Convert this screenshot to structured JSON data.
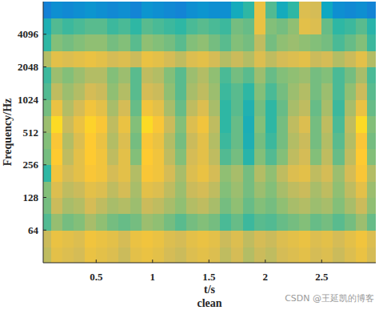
{
  "chart_data": {
    "type": "heatmap",
    "x_label": "t/s",
    "y_label": "Frequency/Hz",
    "caption": "clean",
    "watermark": "CSDN @王延凯的博客",
    "log": "y",
    "xlim": [
      0.03,
      2.98
    ],
    "ylim": [
      32,
      8192
    ],
    "xticks": [
      0.5,
      1,
      1.5,
      2,
      2.5
    ],
    "yticks": [
      64,
      128,
      256,
      512,
      1024,
      2048,
      4096
    ],
    "clim": [
      0,
      1
    ],
    "x_edges": [
      0,
      0.1,
      0.2,
      0.3,
      0.4,
      0.5,
      0.6,
      0.7,
      0.8,
      0.9,
      1,
      1.1,
      1.2,
      1.3,
      1.4,
      1.5,
      1.6,
      1.7,
      1.8,
      1.9,
      2,
      2.1,
      2.2,
      2.3,
      2.4,
      2.5,
      2.6,
      2.7,
      2.8,
      2.9,
      3
    ],
    "y_edges": [
      32,
      45,
      64,
      91,
      128,
      181,
      256,
      362,
      512,
      724,
      1024,
      1448,
      2048,
      2896,
      4096,
      5793,
      8192
    ],
    "z": [
      [
        0.72,
        0.8,
        0.78,
        0.76,
        0.82,
        0.8,
        0.78,
        0.74,
        0.8,
        0.82,
        0.8,
        0.76,
        0.74,
        0.78,
        0.8,
        0.78,
        0.72,
        0.76,
        0.7,
        0.74,
        0.72,
        0.76,
        0.78,
        0.8,
        0.76,
        0.78,
        0.74,
        0.78,
        0.82,
        0.76
      ],
      [
        0.74,
        0.82,
        0.8,
        0.78,
        0.84,
        0.82,
        0.8,
        0.76,
        0.82,
        0.84,
        0.82,
        0.78,
        0.76,
        0.8,
        0.82,
        0.8,
        0.74,
        0.78,
        0.72,
        0.76,
        0.74,
        0.78,
        0.8,
        0.82,
        0.78,
        0.8,
        0.76,
        0.8,
        0.84,
        0.78
      ],
      [
        0.55,
        0.65,
        0.6,
        0.62,
        0.68,
        0.64,
        0.6,
        0.58,
        0.6,
        0.66,
        0.64,
        0.6,
        0.56,
        0.6,
        0.62,
        0.6,
        0.54,
        0.58,
        0.52,
        0.56,
        0.55,
        0.58,
        0.6,
        0.62,
        0.58,
        0.6,
        0.56,
        0.6,
        0.66,
        0.58
      ],
      [
        0.6,
        0.74,
        0.68,
        0.7,
        0.76,
        0.72,
        0.68,
        0.7,
        0.66,
        0.74,
        0.72,
        0.68,
        0.64,
        0.7,
        0.72,
        0.68,
        0.6,
        0.64,
        0.58,
        0.62,
        0.6,
        0.64,
        0.68,
        0.7,
        0.66,
        0.68,
        0.62,
        0.68,
        0.74,
        0.64
      ],
      [
        0.62,
        0.78,
        0.72,
        0.74,
        0.8,
        0.78,
        0.72,
        0.76,
        0.68,
        0.8,
        0.78,
        0.72,
        0.66,
        0.74,
        0.76,
        0.72,
        0.62,
        0.66,
        0.6,
        0.66,
        0.62,
        0.68,
        0.72,
        0.74,
        0.68,
        0.72,
        0.64,
        0.72,
        0.8,
        0.66
      ],
      [
        0.5,
        0.84,
        0.76,
        0.8,
        0.86,
        0.84,
        0.76,
        0.8,
        0.7,
        0.86,
        0.84,
        0.76,
        0.68,
        0.78,
        0.82,
        0.76,
        0.64,
        0.68,
        0.6,
        0.7,
        0.64,
        0.72,
        0.78,
        0.8,
        0.72,
        0.76,
        0.66,
        0.76,
        0.86,
        0.7
      ],
      [
        0.6,
        0.88,
        0.72,
        0.8,
        0.88,
        0.84,
        0.72,
        0.8,
        0.62,
        0.88,
        0.84,
        0.72,
        0.62,
        0.76,
        0.8,
        0.72,
        0.55,
        0.6,
        0.48,
        0.62,
        0.55,
        0.62,
        0.72,
        0.76,
        0.62,
        0.72,
        0.58,
        0.72,
        0.88,
        0.62
      ],
      [
        0.62,
        0.86,
        0.7,
        0.78,
        0.88,
        0.82,
        0.7,
        0.78,
        0.6,
        0.86,
        0.82,
        0.7,
        0.6,
        0.74,
        0.8,
        0.7,
        0.52,
        0.58,
        0.45,
        0.6,
        0.52,
        0.6,
        0.7,
        0.74,
        0.6,
        0.7,
        0.56,
        0.7,
        0.86,
        0.6
      ],
      [
        0.66,
        0.92,
        0.74,
        0.82,
        0.9,
        0.86,
        0.72,
        0.82,
        0.62,
        0.92,
        0.86,
        0.74,
        0.62,
        0.78,
        0.84,
        0.72,
        0.5,
        0.58,
        0.44,
        0.62,
        0.5,
        0.6,
        0.72,
        0.78,
        0.6,
        0.72,
        0.54,
        0.72,
        0.92,
        0.62
      ],
      [
        0.6,
        0.82,
        0.7,
        0.76,
        0.84,
        0.8,
        0.68,
        0.76,
        0.58,
        0.84,
        0.8,
        0.68,
        0.58,
        0.72,
        0.78,
        0.68,
        0.5,
        0.56,
        0.46,
        0.6,
        0.5,
        0.58,
        0.68,
        0.72,
        0.58,
        0.68,
        0.52,
        0.68,
        0.82,
        0.58
      ],
      [
        0.55,
        0.72,
        0.66,
        0.7,
        0.76,
        0.74,
        0.64,
        0.7,
        0.56,
        0.76,
        0.74,
        0.64,
        0.56,
        0.68,
        0.72,
        0.66,
        0.52,
        0.56,
        0.5,
        0.62,
        0.54,
        0.6,
        0.66,
        0.7,
        0.6,
        0.66,
        0.54,
        0.64,
        0.74,
        0.56
      ],
      [
        0.52,
        0.66,
        0.62,
        0.66,
        0.7,
        0.7,
        0.62,
        0.66,
        0.56,
        0.72,
        0.7,
        0.62,
        0.56,
        0.66,
        0.7,
        0.64,
        0.54,
        0.6,
        0.56,
        0.66,
        0.58,
        0.62,
        0.64,
        0.66,
        0.6,
        0.62,
        0.54,
        0.6,
        0.68,
        0.54
      ],
      [
        0.7,
        0.8,
        0.78,
        0.8,
        0.82,
        0.8,
        0.76,
        0.78,
        0.74,
        0.82,
        0.8,
        0.76,
        0.72,
        0.78,
        0.8,
        0.76,
        0.7,
        0.74,
        0.7,
        0.78,
        0.72,
        0.76,
        0.78,
        0.8,
        0.74,
        0.76,
        0.7,
        0.74,
        0.8,
        0.7
      ],
      [
        0.5,
        0.62,
        0.6,
        0.62,
        0.64,
        0.64,
        0.6,
        0.62,
        0.56,
        0.64,
        0.62,
        0.6,
        0.56,
        0.62,
        0.64,
        0.6,
        0.56,
        0.62,
        0.6,
        0.72,
        0.6,
        0.64,
        0.66,
        0.64,
        0.62,
        0.6,
        0.54,
        0.58,
        0.62,
        0.52
      ],
      [
        0.45,
        0.55,
        0.52,
        0.54,
        0.56,
        0.56,
        0.52,
        0.54,
        0.5,
        0.56,
        0.54,
        0.52,
        0.5,
        0.54,
        0.56,
        0.54,
        0.52,
        0.6,
        0.58,
        0.82,
        0.62,
        0.6,
        0.64,
        0.8,
        0.78,
        0.58,
        0.5,
        0.52,
        0.56,
        0.48
      ],
      [
        0.25,
        0.3,
        0.28,
        0.3,
        0.32,
        0.3,
        0.28,
        0.3,
        0.26,
        0.32,
        0.3,
        0.28,
        0.26,
        0.3,
        0.32,
        0.3,
        0.3,
        0.42,
        0.5,
        0.82,
        0.55,
        0.42,
        0.5,
        0.78,
        0.76,
        0.4,
        0.3,
        0.28,
        0.3,
        0.26
      ]
    ]
  }
}
